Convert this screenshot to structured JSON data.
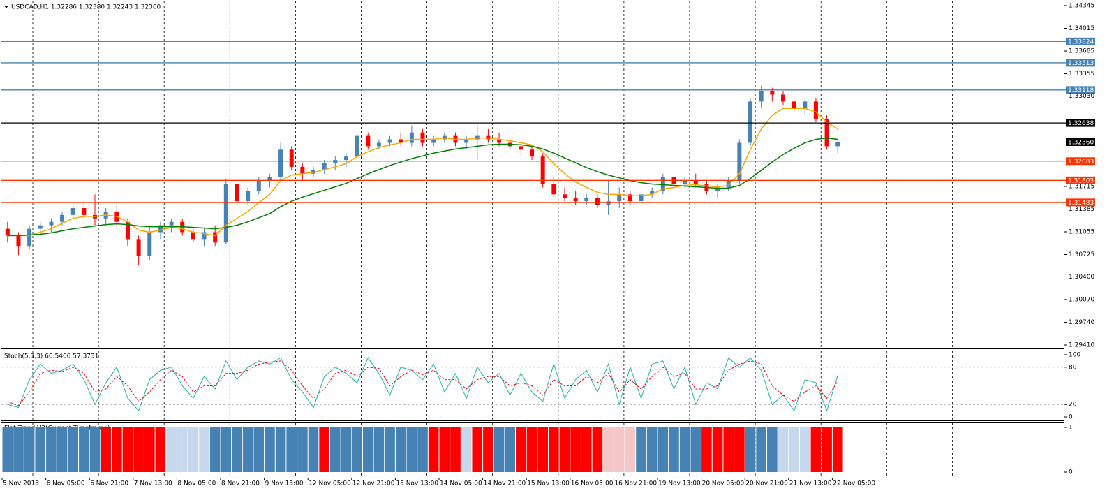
{
  "chart_data": [
    {
      "type": "candlestick",
      "title": "USDCAD,H1  1.32286 1.32380 1.32243 1.32360",
      "categories": [
        "5 Nov 2018",
        null,
        null,
        null,
        "6 Nov 05:00",
        null,
        null,
        null,
        "6 Nov 21:00",
        null,
        null,
        null,
        "7 Nov 13:00",
        null,
        null,
        null,
        "8 Nov 05:00",
        null,
        null,
        null,
        "8 Nov 21:00",
        null,
        null,
        null,
        "9 Nov 13:00",
        null,
        null,
        null,
        "12 Nov 05:00",
        null,
        null,
        null,
        "12 Nov 21:00",
        null,
        null,
        null,
        "13 Nov 13:00",
        null,
        null,
        null,
        "14 Nov 05:00",
        null,
        null,
        null,
        "14 Nov 21:00",
        null,
        null,
        null,
        "15 Nov 13:00",
        null,
        null,
        null,
        "16 Nov 05:00",
        null,
        null,
        null,
        "16 Nov 21:00",
        null,
        null,
        null,
        "19 Nov 13:00",
        null,
        null,
        null,
        "20 Nov 05:00",
        null,
        null,
        null,
        "20 Nov 21:00",
        null,
        null,
        null,
        "21 Nov 13:00",
        null,
        null,
        null,
        "22 Nov 05:00"
      ],
      "ohlc": [
        [
          1.311,
          1.312,
          1.309,
          1.31
        ],
        [
          1.31,
          1.3105,
          1.3072,
          1.3085
        ],
        [
          1.3085,
          1.3115,
          1.308,
          1.311
        ],
        [
          1.311,
          1.312,
          1.31,
          1.3115
        ],
        [
          1.3115,
          1.3125,
          1.3105,
          1.312
        ],
        [
          1.312,
          1.3135,
          1.3115,
          1.313
        ],
        [
          1.313,
          1.3145,
          1.3125,
          1.314
        ],
        [
          1.314,
          1.315,
          1.3125,
          1.313
        ],
        [
          1.313,
          1.316,
          1.3115,
          1.3125
        ],
        [
          1.3125,
          1.314,
          1.3115,
          1.3135
        ],
        [
          1.3135,
          1.3145,
          1.311,
          1.312
        ],
        [
          1.312,
          1.3125,
          1.3085,
          1.3095
        ],
        [
          1.3095,
          1.31,
          1.30568,
          1.307
        ],
        [
          1.307,
          1.3115,
          1.3065,
          1.3105
        ],
        [
          1.3105,
          1.312,
          1.3095,
          1.3115
        ],
        [
          1.3115,
          1.3125,
          1.3105,
          1.312
        ],
        [
          1.312,
          1.3125,
          1.31,
          1.3105
        ],
        [
          1.3105,
          1.311,
          1.309,
          1.3095
        ],
        [
          1.3095,
          1.311,
          1.3085,
          1.3105
        ],
        [
          1.3105,
          1.3115,
          1.3085,
          1.309
        ],
        [
          1.309,
          1.3183,
          1.3088,
          1.3175
        ],
        [
          1.3175,
          1.318,
          1.314,
          1.315
        ],
        [
          1.315,
          1.317,
          1.3145,
          1.3165
        ],
        [
          1.3165,
          1.3185,
          1.316,
          1.318
        ],
        [
          1.318,
          1.319,
          1.317,
          1.3185
        ],
        [
          1.3185,
          1.3235,
          1.318,
          1.3225
        ],
        [
          1.3225,
          1.323,
          1.3195,
          1.32
        ],
        [
          1.32,
          1.3205,
          1.318,
          1.319
        ],
        [
          1.319,
          1.32,
          1.3185,
          1.3195
        ],
        [
          1.3195,
          1.321,
          1.319,
          1.3205
        ],
        [
          1.3205,
          1.3215,
          1.3195,
          1.321
        ],
        [
          1.321,
          1.322,
          1.32,
          1.3215
        ],
        [
          1.3215,
          1.3248,
          1.321,
          1.3245
        ],
        [
          1.3245,
          1.325,
          1.3225,
          1.323
        ],
        [
          1.323,
          1.324,
          1.3225,
          1.3235
        ],
        [
          1.3235,
          1.3245,
          1.323,
          1.324
        ],
        [
          1.324,
          1.325,
          1.323,
          1.3235
        ],
        [
          1.3235,
          1.326,
          1.323,
          1.325
        ],
        [
          1.325,
          1.3255,
          1.323,
          1.3235
        ],
        [
          1.3235,
          1.3245,
          1.323,
          1.324
        ],
        [
          1.324,
          1.325,
          1.3235,
          1.3245
        ],
        [
          1.3245,
          1.325,
          1.323,
          1.3235
        ],
        [
          1.3235,
          1.3245,
          1.3225,
          1.324
        ],
        [
          1.324,
          1.326,
          1.321,
          1.3245
        ],
        [
          1.3245,
          1.3255,
          1.3235,
          1.324
        ],
        [
          1.324,
          1.325,
          1.323,
          1.3235
        ],
        [
          1.3235,
          1.324,
          1.3225,
          1.323
        ],
        [
          1.323,
          1.3235,
          1.3215,
          1.3225
        ],
        [
          1.3225,
          1.323,
          1.321,
          1.3215
        ],
        [
          1.3215,
          1.322,
          1.317,
          1.3175
        ],
        [
          1.3175,
          1.3185,
          1.3155,
          1.316
        ],
        [
          1.316,
          1.317,
          1.315,
          1.3155
        ],
        [
          1.3155,
          1.3165,
          1.3145,
          1.315
        ],
        [
          1.315,
          1.316,
          1.3145,
          1.3155
        ],
        [
          1.3155,
          1.316,
          1.314,
          1.3145
        ],
        [
          1.3145,
          1.318,
          1.313,
          1.315
        ],
        [
          1.315,
          1.317,
          1.314,
          1.316
        ],
        [
          1.316,
          1.3165,
          1.3145,
          1.315
        ],
        [
          1.315,
          1.3165,
          1.3145,
          1.316
        ],
        [
          1.316,
          1.317,
          1.3155,
          1.3165
        ],
        [
          1.3165,
          1.319,
          1.316,
          1.3185
        ],
        [
          1.3185,
          1.3195,
          1.317,
          1.3175
        ],
        [
          1.3175,
          1.3185,
          1.317,
          1.318
        ],
        [
          1.318,
          1.319,
          1.317,
          1.3175
        ],
        [
          1.3175,
          1.318,
          1.316,
          1.3165
        ],
        [
          1.3165,
          1.3175,
          1.3155,
          1.317
        ],
        [
          1.317,
          1.3185,
          1.3165,
          1.318
        ],
        [
          1.318,
          1.324,
          1.3175,
          1.3235
        ],
        [
          1.3235,
          1.33,
          1.323,
          1.3295
        ],
        [
          1.3295,
          1.3318,
          1.3285,
          1.331
        ],
        [
          1.331,
          1.3315,
          1.3295,
          1.3305
        ],
        [
          1.3305,
          1.331,
          1.329,
          1.3295
        ],
        [
          1.3295,
          1.33,
          1.328,
          1.3285
        ],
        [
          1.3285,
          1.33,
          1.3275,
          1.3295
        ],
        [
          1.3295,
          1.33,
          1.3265,
          1.327
        ],
        [
          1.327,
          1.3275,
          1.3225,
          1.323
        ],
        [
          1.323,
          1.324,
          1.322,
          1.3236
        ]
      ],
      "up_color": "#4682b4",
      "down_color": "#ff0000",
      "series": [
        {
          "color": "#ffa500",
          "values": [
            1.31,
            1.31,
            1.31,
            1.3105,
            1.311,
            1.3118,
            1.3125,
            1.3128,
            1.3128,
            1.313,
            1.3128,
            1.312,
            1.3108,
            1.3105,
            1.3108,
            1.3112,
            1.311,
            1.3105,
            1.3103,
            1.31,
            1.3115,
            1.3125,
            1.3135,
            1.3148,
            1.316,
            1.318,
            1.3188,
            1.319,
            1.3192,
            1.3196,
            1.32,
            1.3205,
            1.3215,
            1.3222,
            1.3228,
            1.3232,
            1.3235,
            1.324,
            1.324,
            1.324,
            1.3242,
            1.324,
            1.324,
            1.3242,
            1.3242,
            1.324,
            1.3238,
            1.3235,
            1.3232,
            1.3222,
            1.3205,
            1.319,
            1.3178,
            1.317,
            1.3163,
            1.316,
            1.316,
            1.3158,
            1.3158,
            1.316,
            1.3168,
            1.317,
            1.3173,
            1.3174,
            1.3172,
            1.3171,
            1.3173,
            1.319,
            1.3225,
            1.3255,
            1.3275,
            1.3285,
            1.3285,
            1.3285,
            1.328,
            1.3265,
            1.3255
          ]
        },
        {
          "color": "#008000",
          "values": [
            1.31,
            1.31,
            1.3101,
            1.3102,
            1.3104,
            1.3107,
            1.311,
            1.3112,
            1.3114,
            1.3116,
            1.3117,
            1.3116,
            1.3114,
            1.3113,
            1.3113,
            1.3113,
            1.3113,
            1.3112,
            1.3111,
            1.311,
            1.3112,
            1.3115,
            1.312,
            1.3126,
            1.3132,
            1.3142,
            1.315,
            1.3156,
            1.3161,
            1.3166,
            1.3171,
            1.3176,
            1.3183,
            1.319,
            1.3196,
            1.3202,
            1.3207,
            1.3212,
            1.3216,
            1.322,
            1.3223,
            1.3226,
            1.3228,
            1.323,
            1.3232,
            1.3233,
            1.3233,
            1.3232,
            1.323,
            1.3226,
            1.322,
            1.3213,
            1.3206,
            1.3199,
            1.3193,
            1.3188,
            1.3184,
            1.318,
            1.3177,
            1.3175,
            1.3174,
            1.3173,
            1.3172,
            1.3171,
            1.317,
            1.3169,
            1.3169,
            1.3173,
            1.3183,
            1.3195,
            1.3207,
            1.3218,
            1.3227,
            1.3235,
            1.324,
            1.3242,
            1.324
          ]
        }
      ],
      "levels": [
        {
          "value": 1.33824,
          "color": "#4682b4"
        },
        {
          "value": 1.33513,
          "color": "#4682b4"
        },
        {
          "value": 1.33118,
          "color": "#4682b4"
        },
        {
          "value": 1.32638,
          "color": "#000000"
        },
        {
          "value": 1.3236,
          "label": "1.32360",
          "color": "#708090"
        },
        {
          "value": 1.32083,
          "color": "#ff3300"
        },
        {
          "value": 1.31803,
          "color": "#ff3300"
        },
        {
          "value": 1.31483,
          "color": "#ff3300"
        }
      ],
      "ylim": [
        1.2941,
        1.34345
      ],
      "yticks": [
        1.34345,
        1.34015,
        1.33685,
        1.33355,
        {
          "value": 1.3303,
          "label": "1.33030"
        },
        1.31715,
        1.31385,
        1.31055,
        1.30725,
        {
          "value": 1.304,
          "label": "1.30400"
        },
        {
          "value": 1.3007,
          "label": "1.30070"
        },
        {
          "value": 1.2974,
          "label": "1.29740"
        },
        {
          "value": 1.2941,
          "label": "1.29410"
        }
      ],
      "grid": true
    },
    {
      "type": "line",
      "title": "Stoch(5,3,3) 66.5406 57.3731",
      "series": [
        {
          "color": "#20b2aa",
          "values": [
            20,
            15,
            60,
            85,
            70,
            75,
            85,
            60,
            20,
            55,
            80,
            30,
            10,
            60,
            75,
            80,
            50,
            30,
            65,
            45,
            90,
            60,
            80,
            90,
            85,
            95,
            60,
            40,
            15,
            65,
            80,
            70,
            55,
            95,
            70,
            35,
            80,
            75,
            60,
            85,
            40,
            70,
            30,
            80,
            55,
            70,
            35,
            70,
            40,
            25,
            85,
            30,
            60,
            75,
            40,
            85,
            20,
            80,
            30,
            85,
            90,
            45,
            80,
            20,
            55,
            45,
            95,
            80,
            95,
            75,
            20,
            35,
            10,
            60,
            55,
            10,
            66.5406
          ]
        },
        {
          "color": "#ff0000",
          "dashed": true,
          "values": [
            25,
            18,
            40,
            70,
            75,
            73,
            80,
            70,
            40,
            45,
            65,
            50,
            25,
            40,
            60,
            75,
            65,
            40,
            50,
            50,
            70,
            70,
            75,
            85,
            88,
            90,
            75,
            50,
            30,
            45,
            70,
            75,
            65,
            80,
            78,
            50,
            65,
            75,
            68,
            75,
            60,
            60,
            45,
            60,
            65,
            65,
            50,
            55,
            50,
            35,
            60,
            50,
            50,
            65,
            55,
            70,
            40,
            60,
            45,
            65,
            80,
            65,
            70,
            45,
            45,
            50,
            75,
            85,
            90,
            85,
            50,
            35,
            25,
            40,
            50,
            30,
            57.3731
          ]
        }
      ],
      "ylim": [
        0,
        100
      ],
      "yticks": [
        100,
        80,
        20,
        0
      ]
    },
    {
      "type": "histogram",
      "title": "Flat Trend V3(Current Timeframe)",
      "values": [
        1,
        1,
        1,
        1,
        1,
        1,
        1,
        1,
        1,
        1,
        1,
        1,
        1,
        1,
        1,
        1,
        1,
        1,
        1,
        1,
        1,
        1,
        1,
        1,
        1,
        1,
        1,
        1,
        1,
        1,
        1,
        1,
        1,
        1,
        1,
        1,
        1,
        1,
        1,
        1,
        1,
        1,
        1,
        1,
        1,
        1,
        1,
        1,
        1,
        1,
        1,
        1,
        1,
        1,
        1,
        1,
        1,
        1,
        1,
        1,
        1,
        1,
        1,
        1,
        1,
        1,
        1,
        1,
        1,
        1,
        1,
        1,
        1,
        1,
        1,
        1,
        1
      ],
      "colors": [
        "#4682b4",
        "#4682b4",
        "#4682b4",
        "#4682b4",
        "#4682b4",
        "#4682b4",
        "#4682b4",
        "#4682b4",
        "#4682b4",
        "#ff0000",
        "#ff0000",
        "#ff0000",
        "#ff0000",
        "#ff0000",
        "#ff0000",
        "#c6d9ec",
        "#c6d9ec",
        "#c6d9ec",
        "#c6d9ec",
        "#4682b4",
        "#4682b4",
        "#4682b4",
        "#4682b4",
        "#4682b4",
        "#4682b4",
        "#4682b4",
        "#4682b4",
        "#4682b4",
        "#4682b4",
        "#ff0000",
        "#4682b4",
        "#4682b4",
        "#4682b4",
        "#4682b4",
        "#4682b4",
        "#4682b4",
        "#4682b4",
        "#4682b4",
        "#4682b4",
        "#ff0000",
        "#ff0000",
        "#ff0000",
        "#c6d9ec",
        "#ff0000",
        "#ff0000",
        "#4682b4",
        "#4682b4",
        "#ff0000",
        "#ff0000",
        "#ff0000",
        "#ff0000",
        "#ff0000",
        "#ff0000",
        "#ff0000",
        "#ff0000",
        "#f5c6c6",
        "#f5c6c6",
        "#f5c6c6",
        "#4682b4",
        "#4682b4",
        "#4682b4",
        "#4682b4",
        "#4682b4",
        "#4682b4",
        "#ff0000",
        "#ff0000",
        "#ff0000",
        "#ff0000",
        "#4682b4",
        "#4682b4",
        "#4682b4",
        "#c6d9ec",
        "#c6d9ec",
        "#c6d9ec",
        "#ff0000",
        "#ff0000",
        "#ff0000"
      ],
      "ylim": [
        0,
        1
      ],
      "yticks": [
        1,
        0
      ]
    }
  ]
}
